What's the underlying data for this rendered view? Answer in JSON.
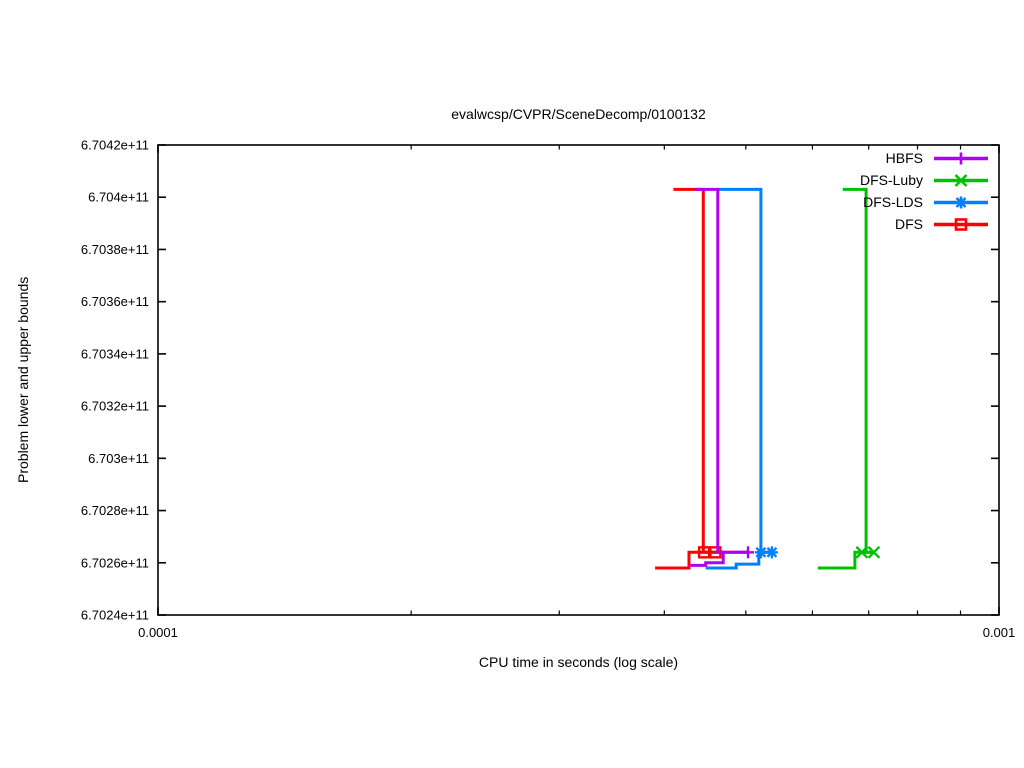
{
  "chart_data": {
    "type": "line",
    "title": "evalwcsp/CVPR/SceneDecomp/0100132",
    "xlabel": "CPU time in seconds (log scale)",
    "ylabel": "Problem lower and upper bounds",
    "x_scale": "log",
    "grid": false,
    "legend_position": "top-right-inside",
    "xlim": [
      0.0001,
      0.001
    ],
    "ylim": [
      670240000000,
      670420000000
    ],
    "x_ticks": [
      {
        "value": 0.0001,
        "label": "0.0001"
      },
      {
        "value": 0.001,
        "label": "0.001"
      }
    ],
    "x_minor_ticks": [
      0.0002,
      0.0003,
      0.0004,
      0.0005,
      0.0006,
      0.0007,
      0.0008,
      0.0009
    ],
    "y_ticks": [
      {
        "value": 670420000000,
        "label": "6.7042e+11"
      },
      {
        "value": 670400000000,
        "label": "6.704e+11"
      },
      {
        "value": 670380000000,
        "label": "6.7038e+11"
      },
      {
        "value": 670360000000,
        "label": "6.7036e+11"
      },
      {
        "value": 670340000000,
        "label": "6.7034e+11"
      },
      {
        "value": 670320000000,
        "label": "6.7032e+11"
      },
      {
        "value": 670300000000,
        "label": "6.703e+11"
      },
      {
        "value": 670280000000,
        "label": "6.7028e+11"
      },
      {
        "value": 670260000000,
        "label": "6.7026e+11"
      },
      {
        "value": 670240000000,
        "label": "6.7024e+11"
      }
    ],
    "axis_color": "#000000",
    "series": [
      {
        "name": "HBFS",
        "color": "#b000f0",
        "marker": "plus",
        "lower_bound": [
          [
            0.000428,
            670259000000
          ],
          [
            0.000448,
            670259000000
          ],
          [
            0.000448,
            670260000000
          ],
          [
            0.00047,
            670260000000
          ],
          [
            0.00047,
            670264000000
          ],
          [
            0.000503,
            670264000000
          ]
        ],
        "upper_bound": [
          [
            0.000435,
            670403000000
          ],
          [
            0.000463,
            670403000000
          ],
          [
            0.000463,
            670264000000
          ],
          [
            0.000503,
            670264000000
          ]
        ],
        "marker_points": [
          [
            0.000503,
            670264000000
          ]
        ]
      },
      {
        "name": "DFS-Luby",
        "color": "#00c000",
        "marker": "cross",
        "lower_bound": [
          [
            0.000609,
            670258000000
          ],
          [
            0.000674,
            670258000000
          ],
          [
            0.000674,
            670264000000
          ],
          [
            0.00071,
            670264000000
          ]
        ],
        "upper_bound": [
          [
            0.000652,
            670403000000
          ],
          [
            0.000695,
            670403000000
          ],
          [
            0.000695,
            670264000000
          ],
          [
            0.00071,
            670264000000
          ]
        ],
        "marker_points": [
          [
            0.000687,
            670264000000
          ],
          [
            0.00071,
            670264000000
          ]
        ]
      },
      {
        "name": "DFS-LDS",
        "color": "#0080ff",
        "marker": "asterisk",
        "lower_bound": [
          [
            0.000448,
            670258000000
          ],
          [
            0.000487,
            670258000000
          ],
          [
            0.000487,
            670259500000
          ],
          [
            0.000518,
            670259500000
          ],
          [
            0.000518,
            670264000000
          ],
          [
            0.000537,
            670264000000
          ]
        ],
        "upper_bound": [
          [
            0.000463,
            670403000000
          ],
          [
            0.000521,
            670403000000
          ],
          [
            0.000521,
            670264000000
          ],
          [
            0.000537,
            670264000000
          ]
        ],
        "marker_points": [
          [
            0.000521,
            670264000000
          ],
          [
            0.000537,
            670264000000
          ]
        ]
      },
      {
        "name": "DFS",
        "color": "#ff0000",
        "marker": "square",
        "lower_bound": [
          [
            0.00039,
            670258000000
          ],
          [
            0.000428,
            670258000000
          ],
          [
            0.000428,
            670264000000
          ],
          [
            0.00047,
            670264000000
          ]
        ],
        "upper_bound": [
          [
            0.00041,
            670403000000
          ],
          [
            0.000445,
            670403000000
          ],
          [
            0.000445,
            670264000000
          ],
          [
            0.00047,
            670264000000
          ]
        ],
        "marker_points": [
          [
            0.000446,
            670264000000
          ],
          [
            0.00046,
            670264000000
          ]
        ]
      }
    ],
    "draw_order": [
      "DFS",
      "DFS-Luby",
      "DFS-LDS",
      "HBFS"
    ]
  }
}
